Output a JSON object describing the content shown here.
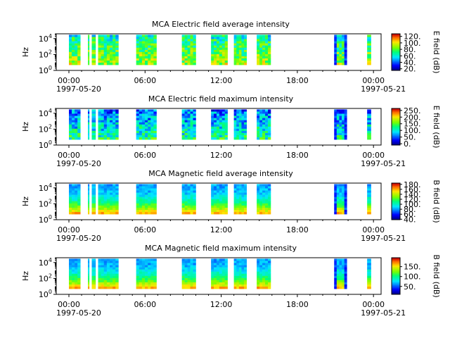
{
  "chart_data": [
    {
      "type": "heatmap",
      "title": "MCA  Electric field average intensity",
      "ylabel": "Hz",
      "yscale": "log",
      "ylim": [
        1,
        40000
      ],
      "yticks": [
        "10^0",
        "10^2",
        "10^4"
      ],
      "xticks": [
        "00:00",
        "06:00",
        "12:00",
        "18:00",
        "00:00"
      ],
      "xdates": [
        "1997-05-20",
        "1997-05-21"
      ],
      "colorbar": {
        "label": "E field (dB)",
        "ticks": [
          "20.",
          "40.",
          "60.",
          "80.",
          "100.",
          "120."
        ],
        "range": [
          15,
          128
        ]
      },
      "data_windows_hours": [
        [
          0.0,
          0.9
        ],
        [
          1.5,
          1.6
        ],
        [
          1.8,
          2.1
        ],
        [
          2.3,
          3.9
        ],
        [
          5.3,
          6.9
        ],
        [
          8.9,
          10.0
        ],
        [
          11.2,
          12.5
        ],
        [
          13.0,
          14.0
        ],
        [
          14.8,
          15.9
        ],
        [
          20.9,
          21.9
        ],
        [
          23.5,
          23.8
        ]
      ],
      "intensity_level": 0.55
    },
    {
      "type": "heatmap",
      "title": "MCA  Electric field maximum intensity",
      "ylabel": "Hz",
      "yscale": "log",
      "ylim": [
        1,
        40000
      ],
      "yticks": [
        "10^0",
        "10^2",
        "10^4"
      ],
      "xticks": [
        "00:00",
        "06:00",
        "12:00",
        "18:00",
        "00:00"
      ],
      "xdates": [
        "1997-05-20",
        "1997-05-21"
      ],
      "colorbar": {
        "label": "E field (dB)",
        "ticks": [
          "0.",
          "50.",
          "100.",
          "150.",
          "200.",
          "250."
        ],
        "range": [
          -10,
          265
        ]
      },
      "data_windows_hours": [
        [
          0.0,
          0.9
        ],
        [
          1.5,
          1.6
        ],
        [
          1.8,
          2.1
        ],
        [
          2.3,
          3.9
        ],
        [
          5.3,
          6.9
        ],
        [
          8.9,
          10.0
        ],
        [
          11.2,
          12.5
        ],
        [
          13.0,
          14.0
        ],
        [
          14.8,
          15.9
        ],
        [
          20.9,
          21.9
        ],
        [
          23.5,
          23.8
        ]
      ],
      "intensity_level": 0.35
    },
    {
      "type": "heatmap",
      "title": "MCA  Magnetic field average intensity",
      "ylabel": "Hz",
      "yscale": "log",
      "ylim": [
        1,
        40000
      ],
      "yticks": [
        "10^0",
        "10^2",
        "10^4"
      ],
      "xticks": [
        "00:00",
        "06:00",
        "12:00",
        "18:00",
        "00:00"
      ],
      "xdates": [
        "1997-05-20",
        "1997-05-21"
      ],
      "colorbar": {
        "label": "B field (dB)",
        "ticks": [
          "40.",
          "60.",
          "80.",
          "100.",
          "120.",
          "140.",
          "160.",
          "180."
        ],
        "range": [
          38,
          185
        ]
      },
      "data_windows_hours": [
        [
          0.0,
          0.9
        ],
        [
          1.5,
          1.6
        ],
        [
          1.8,
          2.1
        ],
        [
          2.3,
          3.9
        ],
        [
          5.3,
          6.9
        ],
        [
          8.9,
          10.0
        ],
        [
          11.2,
          12.5
        ],
        [
          13.0,
          14.0
        ],
        [
          14.8,
          15.9
        ],
        [
          20.9,
          21.9
        ],
        [
          23.5,
          23.8
        ]
      ],
      "intensity_level": 0.45
    },
    {
      "type": "heatmap",
      "title": "MCA  Magnetic field maximum intensity",
      "ylabel": "Hz",
      "yscale": "log",
      "ylim": [
        1,
        40000
      ],
      "yticks": [
        "10^0",
        "10^2",
        "10^4"
      ],
      "xticks": [
        "00:00",
        "06:00",
        "12:00",
        "18:00",
        "00:00"
      ],
      "xdates": [
        "1997-05-20",
        "1997-05-21"
      ],
      "colorbar": {
        "label": "B field (dB)",
        "ticks": [
          "50.",
          "100.",
          "150."
        ],
        "range": [
          10,
          195
        ]
      },
      "data_windows_hours": [
        [
          0.0,
          0.9
        ],
        [
          1.5,
          1.6
        ],
        [
          1.8,
          2.1
        ],
        [
          2.3,
          3.9
        ],
        [
          5.3,
          6.9
        ],
        [
          8.9,
          10.0
        ],
        [
          11.2,
          12.5
        ],
        [
          13.0,
          14.0
        ],
        [
          14.8,
          15.9
        ],
        [
          20.9,
          21.9
        ],
        [
          23.5,
          23.8
        ]
      ],
      "intensity_level": 0.5
    }
  ]
}
